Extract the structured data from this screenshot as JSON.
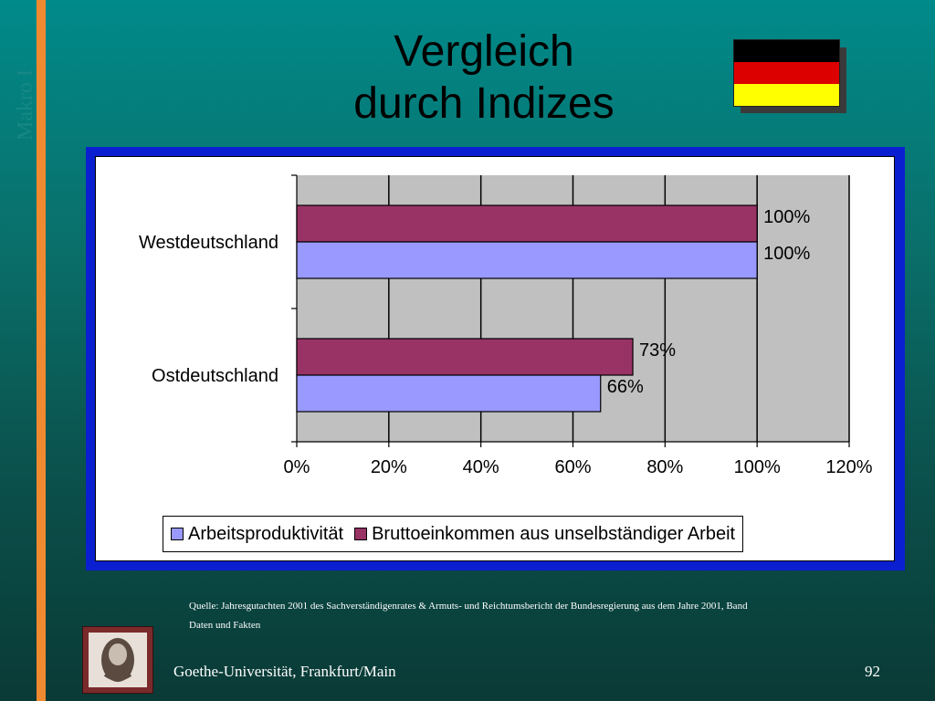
{
  "slide": {
    "vertical_label": "Makro I",
    "title_line1": "Vergleich",
    "title_line2": "durch Indizes",
    "source_line1": "Quelle: Jahresgutachten 2001 des Sachverständigenrates & Armuts- und Reichtumsbericht der Bundesregierung aus dem Jahre 2001, Band",
    "source_line2": "Daten und Fakten",
    "footer": "Goethe-Universität, Frankfurt/Main",
    "page_number": "92"
  },
  "flag_colors": [
    "#000000",
    "#dd0000",
    "#ffff00"
  ],
  "chart_data": {
    "type": "bar",
    "orientation": "horizontal",
    "title": "",
    "xlabel": "",
    "ylabel": "",
    "categories": [
      "Westdeutschland",
      "Ostdeutschland"
    ],
    "series": [
      {
        "name": "Arbeitsproduktivität",
        "color": "#9999ff",
        "values": [
          100,
          66
        ],
        "labels": [
          "100%",
          "66%"
        ]
      },
      {
        "name": "Bruttoeinkommen aus unselbständiger Arbeit",
        "color": "#993366",
        "values": [
          100,
          73
        ],
        "labels": [
          "100%",
          "73%"
        ]
      }
    ],
    "xlim": [
      0,
      120
    ],
    "x_ticks": [
      0,
      20,
      40,
      60,
      80,
      100,
      120
    ],
    "x_tick_labels": [
      "0%",
      "20%",
      "40%",
      "60%",
      "80%",
      "100%",
      "120%"
    ],
    "plot_background": "#c0c0c0",
    "grid": true,
    "legend_position": "bottom"
  }
}
